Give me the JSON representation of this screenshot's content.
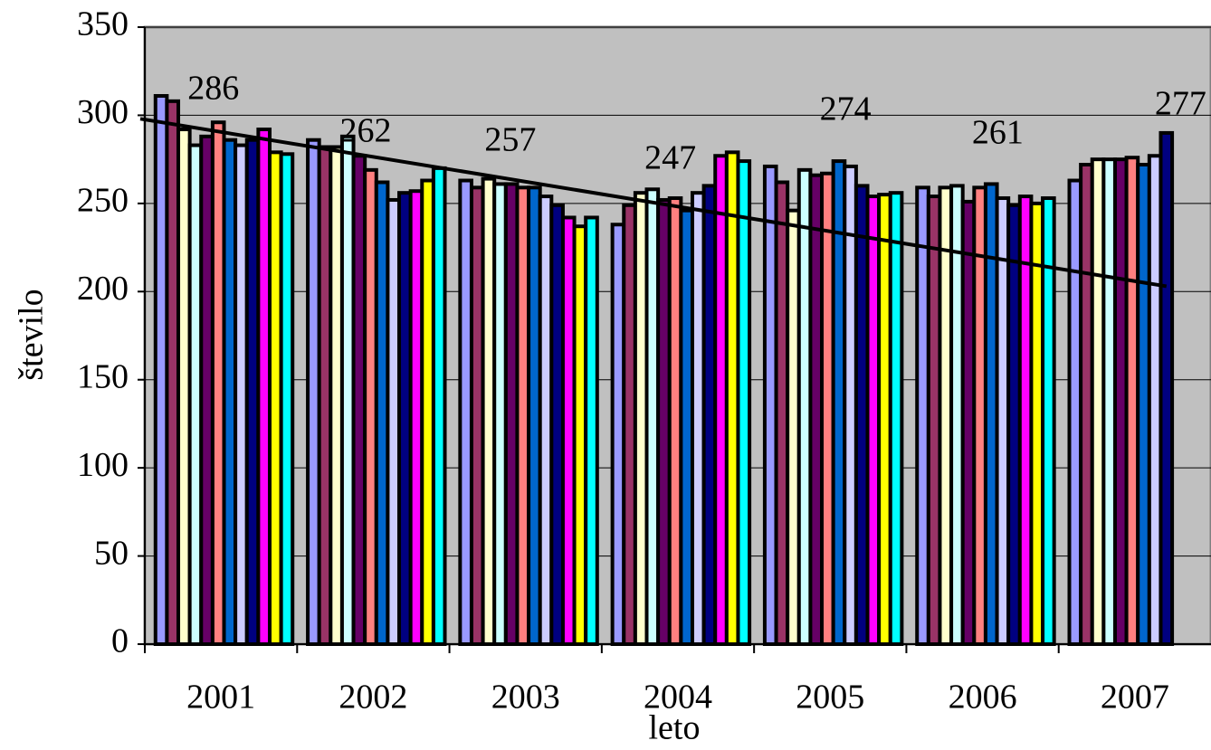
{
  "chart_data": {
    "type": "bar",
    "xlabel": "leto",
    "ylabel": "število",
    "categories": [
      "2001",
      "2002",
      "2003",
      "2004",
      "2005",
      "2006",
      "2007"
    ],
    "series": [
      {
        "color": "#9999ff",
        "values": [
          311,
          286,
          263,
          238,
          271,
          259,
          263
        ]
      },
      {
        "color": "#993366",
        "values": [
          308,
          282,
          259,
          249,
          262,
          254,
          272
        ]
      },
      {
        "color": "#ffffcc",
        "values": [
          292,
          282,
          264,
          256,
          246,
          259,
          275
        ]
      },
      {
        "color": "#ccffff",
        "values": [
          283,
          288,
          261,
          258,
          269,
          260,
          275
        ]
      },
      {
        "color": "#660066",
        "values": [
          288,
          277,
          261,
          252,
          266,
          251,
          275
        ]
      },
      {
        "color": "#ff8080",
        "values": [
          296,
          269,
          259,
          253,
          267,
          259,
          276
        ]
      },
      {
        "color": "#0066cc",
        "values": [
          286,
          262,
          259,
          246,
          274,
          261,
          272
        ]
      },
      {
        "color": "#ccccff",
        "values": [
          283,
          252,
          254,
          256,
          271,
          253,
          277
        ]
      },
      {
        "color": "#000080",
        "values": [
          286,
          256,
          249,
          260,
          260,
          249,
          290
        ]
      },
      {
        "color": "#ff00ff",
        "values": [
          292,
          257,
          242,
          277,
          254,
          254,
          null
        ]
      },
      {
        "color": "#ffff00",
        "values": [
          279,
          263,
          237,
          279,
          255,
          250,
          null
        ]
      },
      {
        "color": "#00ffff",
        "values": [
          278,
          270,
          242,
          274,
          256,
          253,
          null
        ]
      }
    ],
    "averages": [
      286,
      262,
      257,
      247,
      274,
      261,
      277
    ],
    "trendline": [
      298,
      203
    ],
    "ylim": [
      0,
      350
    ],
    "yticks": [
      0,
      50,
      100,
      150,
      200,
      250,
      300,
      350
    ],
    "grid": true,
    "plot_background": "#c0c0c0"
  }
}
